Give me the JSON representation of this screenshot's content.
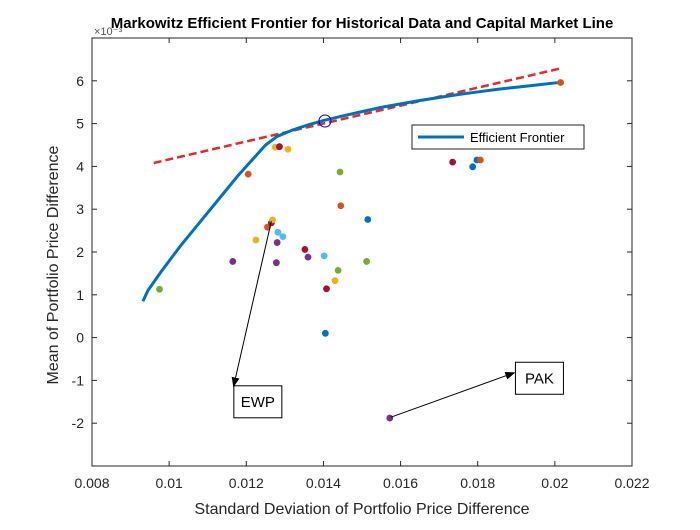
{
  "chart_data": {
    "type": "scatter",
    "title": "Markowitz Efficient Frontier for Historical Data and Capital Market Line",
    "xlabel": "Standard Deviation of Portfolio Price Difference",
    "ylabel": "Mean of Portfolio Price Difference",
    "y_exponent_label": "×10⁻³",
    "xlim": [
      0.008,
      0.022
    ],
    "ylim": [
      -3,
      7
    ],
    "x_ticks": [
      0.008,
      0.01,
      0.012,
      0.014,
      0.016,
      0.018,
      0.02,
      0.022
    ],
    "x_tick_labels": [
      "0.008",
      "0.01",
      "0.012",
      "0.014",
      "0.016",
      "0.018",
      "0.02",
      "0.022"
    ],
    "y_ticks": [
      -2,
      -1,
      0,
      1,
      2,
      3,
      4,
      5,
      6
    ],
    "y_tick_labels": [
      "-2",
      "-1",
      "0",
      "1",
      "2",
      "3",
      "4",
      "5",
      "6"
    ],
    "grid": false,
    "legend": {
      "entries": [
        "Efficient Frontier"
      ],
      "placement": "upper-right, inside axes"
    },
    "efficient_frontier": {
      "name": "Efficient Frontier",
      "color": "#0072BD",
      "x": [
        0.00932,
        0.00945,
        0.0098,
        0.0103,
        0.0108,
        0.0113,
        0.0118,
        0.0122,
        0.0125,
        0.0128,
        0.0132,
        0.0136,
        0.014,
        0.0145,
        0.015,
        0.0155,
        0.016,
        0.0165,
        0.017,
        0.0175,
        0.018,
        0.0185,
        0.019,
        0.0195,
        0.02,
        0.02015
      ],
      "y": [
        0.85,
        1.1,
        1.55,
        2.15,
        2.7,
        3.25,
        3.8,
        4.2,
        4.5,
        4.7,
        4.85,
        4.97,
        5.07,
        5.18,
        5.28,
        5.38,
        5.46,
        5.54,
        5.61,
        5.68,
        5.74,
        5.8,
        5.85,
        5.9,
        5.95,
        5.96
      ]
    },
    "capital_market_line": {
      "color": "#E8282B",
      "style": "dashed",
      "x": [
        0.0096,
        0.0202
      ],
      "y": [
        4.08,
        6.3
      ]
    },
    "tangency_point": {
      "x": 0.01404,
      "y": 5.06,
      "color": "#0000CC"
    },
    "assets": [
      {
        "x": 0.00975,
        "y": 1.13,
        "color": "#77AC30"
      },
      {
        "x": 0.01165,
        "y": 1.78,
        "color": "#7E2F8E"
      },
      {
        "x": 0.01205,
        "y": 3.82,
        "color": "#D95319"
      },
      {
        "x": 0.01225,
        "y": 2.28,
        "color": "#EDB120"
      },
      {
        "x": 0.01255,
        "y": 2.58,
        "color": "#D95319"
      },
      {
        "x": 0.01265,
        "y": 2.68,
        "color": "#A2142F"
      },
      {
        "x": 0.01268,
        "y": 2.75,
        "color": "#EDB120"
      },
      {
        "x": 0.01275,
        "y": 4.45,
        "color": "#EDB120"
      },
      {
        "x": 0.01278,
        "y": 1.75,
        "color": "#7E2F8E"
      },
      {
        "x": 0.01282,
        "y": 2.46,
        "color": "#4DBEEE"
      },
      {
        "x": 0.01286,
        "y": 4.46,
        "color": "#A2142F"
      },
      {
        "x": 0.01295,
        "y": 2.36,
        "color": "#4DBEEE"
      },
      {
        "x": 0.0128,
        "y": 2.22,
        "color": "#7E2F8E"
      },
      {
        "x": 0.01308,
        "y": 4.4,
        "color": "#EDB120"
      },
      {
        "x": 0.01352,
        "y": 2.06,
        "color": "#A2142F"
      },
      {
        "x": 0.0136,
        "y": 1.88,
        "color": "#7E2F8E"
      },
      {
        "x": 0.01402,
        "y": 1.91,
        "color": "#4DBEEE"
      },
      {
        "x": 0.01405,
        "y": 0.1,
        "color": "#0072BD"
      },
      {
        "x": 0.01408,
        "y": 1.14,
        "color": "#A2142F"
      },
      {
        "x": 0.0143,
        "y": 1.33,
        "color": "#EDB120"
      },
      {
        "x": 0.01438,
        "y": 1.57,
        "color": "#77AC30"
      },
      {
        "x": 0.01443,
        "y": 3.87,
        "color": "#77AC30"
      },
      {
        "x": 0.01445,
        "y": 3.08,
        "color": "#D95319"
      },
      {
        "x": 0.01512,
        "y": 1.78,
        "color": "#77AC30"
      },
      {
        "x": 0.01515,
        "y": 2.76,
        "color": "#0072BD"
      },
      {
        "x": 0.01572,
        "y": -1.88,
        "color": "#7E2F8E"
      },
      {
        "x": 0.01735,
        "y": 4.1,
        "color": "#A2142F"
      },
      {
        "x": 0.01787,
        "y": 3.99,
        "color": "#0072BD"
      },
      {
        "x": 0.01798,
        "y": 4.15,
        "color": "#0072BD"
      },
      {
        "x": 0.01807,
        "y": 4.15,
        "color": "#D95319"
      },
      {
        "x": 0.02015,
        "y": 5.96,
        "color": "#D95319"
      }
    ],
    "annotations": [
      {
        "text": "EWP",
        "box_x": 0.0123,
        "box_y": -1.5,
        "arrow_from": [
          0.01265,
          2.72
        ],
        "arrow_to": [
          0.01167,
          -1.14
        ]
      },
      {
        "text": "PAK",
        "box_x": 0.0196,
        "box_y": -0.95,
        "arrow_from": [
          0.01575,
          -1.86
        ],
        "arrow_to": [
          0.01895,
          -0.82
        ]
      }
    ]
  }
}
